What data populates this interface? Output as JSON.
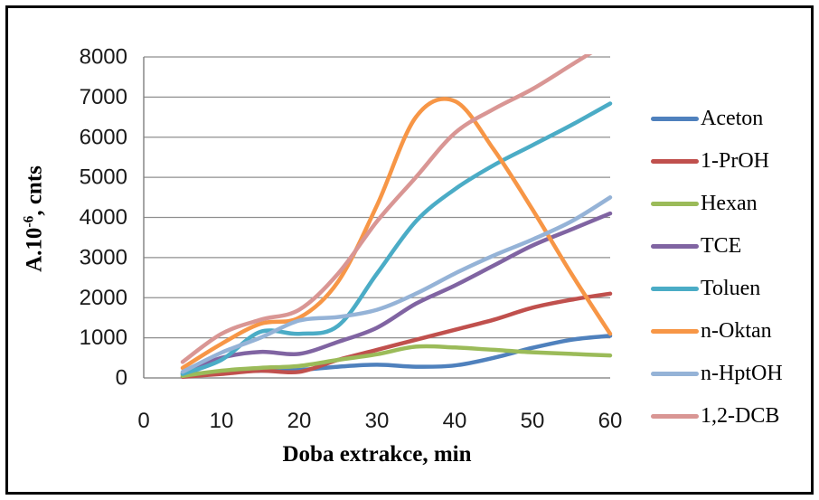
{
  "window": {
    "background_color": "#ffffff",
    "border_color": "#000000"
  },
  "y_axis_title": {
    "prefix": "A.10",
    "superscript": "-6",
    "suffix": ", cnts"
  },
  "chart_data": {
    "type": "line",
    "title": "",
    "xlabel": "Doba extrakce, min",
    "ylabel": "A.10⁻⁶, cnts",
    "x": [
      5,
      10,
      15,
      20,
      25,
      30,
      35,
      40,
      45,
      50,
      55,
      60
    ],
    "xlim": [
      0,
      60
    ],
    "ylim": [
      0,
      8000
    ],
    "x_ticks": [
      0,
      10,
      20,
      30,
      40,
      50,
      60
    ],
    "y_ticks": [
      0,
      1000,
      2000,
      3000,
      4000,
      5000,
      6000,
      7000,
      8000
    ],
    "grid": "horizontal-only",
    "gridline_color": "#8f8f8f",
    "axis_line_color": "#7f7f7f",
    "tick_label_color": "#1a1a1a",
    "line_style": "smooth",
    "legend_position": "right-outside",
    "series": [
      {
        "name": "Aceton",
        "color": "#4F81BD",
        "values": [
          80,
          150,
          180,
          200,
          280,
          330,
          280,
          310,
          500,
          750,
          950,
          1050
        ]
      },
      {
        "name": "1-PrOH",
        "color": "#C0504D",
        "values": [
          30,
          100,
          180,
          150,
          450,
          700,
          950,
          1200,
          1450,
          1750,
          1950,
          2100
        ]
      },
      {
        "name": "Hexan",
        "color": "#9BBB59",
        "values": [
          50,
          180,
          250,
          300,
          450,
          590,
          780,
          760,
          700,
          640,
          600,
          560
        ]
      },
      {
        "name": "TCE",
        "color": "#8064A2",
        "values": [
          120,
          500,
          650,
          600,
          900,
          1250,
          1850,
          2300,
          2800,
          3300,
          3700,
          4100
        ]
      },
      {
        "name": "Toluen",
        "color": "#4BACC6",
        "values": [
          100,
          450,
          1150,
          1100,
          1300,
          2600,
          3900,
          4700,
          5300,
          5800,
          6300,
          6840
        ]
      },
      {
        "name": "n-Oktan",
        "color": "#F79646",
        "values": [
          250,
          850,
          1350,
          1500,
          2400,
          4300,
          6500,
          6900,
          5700,
          4200,
          2600,
          1100
        ]
      },
      {
        "name": "n-HptOH",
        "color": "#95B3D7",
        "values": [
          150,
          630,
          1000,
          1430,
          1520,
          1700,
          2100,
          2600,
          3050,
          3450,
          3900,
          4500
        ]
      },
      {
        "name": "1,2-DCB",
        "color": "#D99694",
        "clipped_at_ymax": true,
        "values": [
          400,
          1100,
          1450,
          1700,
          2600,
          3900,
          5000,
          6100,
          6700,
          7200,
          7800,
          8400
        ]
      }
    ]
  }
}
